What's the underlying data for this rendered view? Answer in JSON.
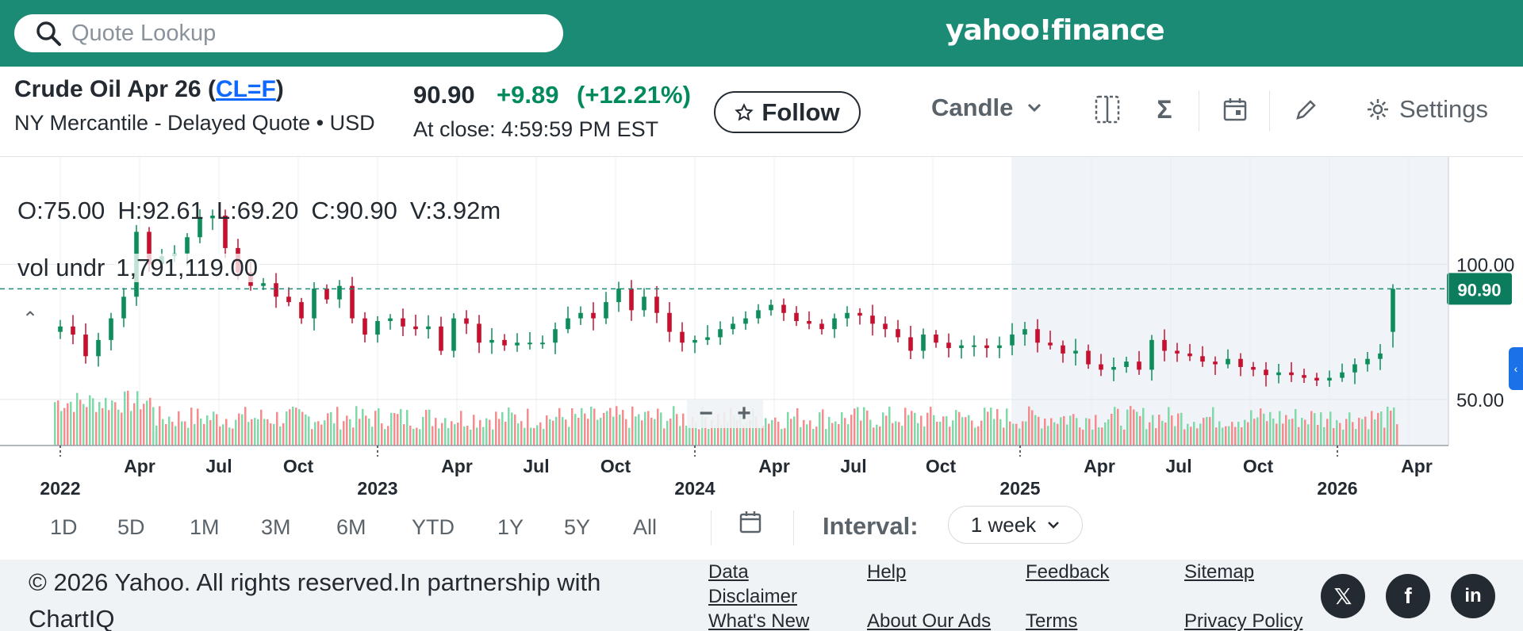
{
  "search": {
    "placeholder": "Quote Lookup"
  },
  "brand": {
    "logo_text": "yahoo!finance"
  },
  "quote": {
    "title_prefix": "Crude Oil Apr 26 (",
    "symbol": "CL=F",
    "title_suffix": ")",
    "exchange_line": "NY Mercantile - Delayed Quote • USD",
    "price": "90.90",
    "change": "+9.89",
    "change_pct": "(+12.21%)",
    "close_time": "At close: 4:59:59 PM EST",
    "follow_label": "Follow"
  },
  "toolbar": {
    "chart_type": "Candle",
    "settings_label": "Settings",
    "icons": [
      "compare-icon",
      "indicators-sigma-icon",
      "events-calendar-icon",
      "draw-pencil-icon",
      "gear-icon"
    ]
  },
  "chart_overlay": {
    "open": "O:75.00",
    "high": "H:92.61",
    "low": "L:69.20",
    "close": "C:90.90",
    "volume": "V:3.92m",
    "vol_label": "vol undr",
    "vol_value": "1,791,119.00",
    "price_tag": "90.90",
    "zoom_minus": "−",
    "zoom_plus": "+"
  },
  "chart_data": {
    "type": "candlestick",
    "interval": "weekly",
    "last_price": 90.9,
    "last_candle": {
      "open": 75.0,
      "high": 92.61,
      "low": 69.2,
      "close": 90.9
    },
    "y_tick_labels": [
      "100.00",
      "50.00"
    ],
    "x_month_labels": [
      "Apr",
      "Jul",
      "Oct",
      "Apr",
      "Jul",
      "Oct",
      "Apr",
      "Jul",
      "Oct",
      "Apr",
      "Jul",
      "Oct",
      "Apr"
    ],
    "x_year_labels": [
      "2022",
      "2023",
      "2024",
      "2025",
      "2026"
    ],
    "ylim": [
      40,
      135
    ],
    "closes": [
      [
        2022.0,
        77
      ],
      [
        2022.04,
        74
      ],
      [
        2022.08,
        66
      ],
      [
        2022.12,
        72
      ],
      [
        2022.16,
        80
      ],
      [
        2022.2,
        88
      ],
      [
        2022.24,
        112
      ],
      [
        2022.28,
        100
      ],
      [
        2022.32,
        103
      ],
      [
        2022.36,
        104
      ],
      [
        2022.4,
        110
      ],
      [
        2022.44,
        117
      ],
      [
        2022.48,
        118
      ],
      [
        2022.52,
        106
      ],
      [
        2022.56,
        97
      ],
      [
        2022.6,
        92
      ],
      [
        2022.64,
        93
      ],
      [
        2022.68,
        88
      ],
      [
        2022.72,
        86
      ],
      [
        2022.76,
        80
      ],
      [
        2022.8,
        91
      ],
      [
        2022.84,
        87
      ],
      [
        2022.88,
        92
      ],
      [
        2022.92,
        80
      ],
      [
        2022.96,
        74
      ],
      [
        2023.0,
        79
      ],
      [
        2023.04,
        80
      ],
      [
        2023.08,
        77
      ],
      [
        2023.12,
        76
      ],
      [
        2023.16,
        77
      ],
      [
        2023.2,
        68
      ],
      [
        2023.24,
        80
      ],
      [
        2023.28,
        78
      ],
      [
        2023.32,
        71
      ],
      [
        2023.36,
        72
      ],
      [
        2023.4,
        70
      ],
      [
        2023.44,
        71
      ],
      [
        2023.48,
        71
      ],
      [
        2023.52,
        71
      ],
      [
        2023.56,
        76
      ],
      [
        2023.6,
        80
      ],
      [
        2023.64,
        82
      ],
      [
        2023.68,
        80
      ],
      [
        2023.72,
        86
      ],
      [
        2023.76,
        91
      ],
      [
        2023.8,
        83
      ],
      [
        2023.84,
        88
      ],
      [
        2023.88,
        82
      ],
      [
        2023.92,
        75
      ],
      [
        2023.96,
        71
      ],
      [
        2024.0,
        72
      ],
      [
        2024.04,
        73
      ],
      [
        2024.08,
        76
      ],
      [
        2024.12,
        78
      ],
      [
        2024.16,
        80
      ],
      [
        2024.2,
        83
      ],
      [
        2024.24,
        85
      ],
      [
        2024.28,
        82
      ],
      [
        2024.32,
        79
      ],
      [
        2024.36,
        78
      ],
      [
        2024.4,
        76
      ],
      [
        2024.44,
        80
      ],
      [
        2024.48,
        82
      ],
      [
        2024.52,
        81
      ],
      [
        2024.56,
        78
      ],
      [
        2024.6,
        76
      ],
      [
        2024.64,
        73
      ],
      [
        2024.68,
        68
      ],
      [
        2024.72,
        74
      ],
      [
        2024.76,
        71
      ],
      [
        2024.8,
        69
      ],
      [
        2024.84,
        70
      ],
      [
        2024.88,
        70
      ],
      [
        2024.92,
        69
      ],
      [
        2024.96,
        70
      ],
      [
        2025.0,
        74
      ],
      [
        2025.04,
        76
      ],
      [
        2025.08,
        71
      ],
      [
        2025.12,
        70
      ],
      [
        2025.16,
        67
      ],
      [
        2025.2,
        68
      ],
      [
        2025.24,
        63
      ],
      [
        2025.28,
        61
      ],
      [
        2025.32,
        62
      ],
      [
        2025.36,
        64
      ],
      [
        2025.4,
        61
      ],
      [
        2025.44,
        72
      ],
      [
        2025.48,
        68
      ],
      [
        2025.52,
        67
      ],
      [
        2025.56,
        66
      ],
      [
        2025.6,
        64
      ],
      [
        2025.64,
        63
      ],
      [
        2025.68,
        65
      ],
      [
        2025.72,
        62
      ],
      [
        2025.76,
        61
      ],
      [
        2025.8,
        59
      ],
      [
        2025.84,
        60
      ],
      [
        2025.88,
        59
      ],
      [
        2025.92,
        58
      ],
      [
        2025.96,
        57
      ],
      [
        2026.0,
        58
      ],
      [
        2026.04,
        60
      ],
      [
        2026.08,
        63
      ],
      [
        2026.12,
        65
      ],
      [
        2026.16,
        67
      ],
      [
        2026.2,
        90.9
      ]
    ]
  },
  "range_buttons": [
    "1D",
    "5D",
    "1M",
    "3M",
    "6M",
    "YTD",
    "1Y",
    "5Y",
    "All"
  ],
  "interval": {
    "label": "Interval:",
    "value": "1 week"
  },
  "footer": {
    "copyright": "© 2026 Yahoo. All rights reserved.In partnership with ChartIQ",
    "links": {
      "data_disclaimer": "Data Disclaimer",
      "whats_new": "What's New",
      "help": "Help",
      "about_ads": "About Our Ads",
      "feedback": "Feedback",
      "terms": "Terms",
      "sitemap": "Sitemap",
      "privacy": "Privacy Policy"
    },
    "social": [
      "x-icon",
      "facebook-icon",
      "linkedin-icon"
    ]
  },
  "colors": {
    "brand_green": "#1b8b75",
    "up_green": "#0b8f5a",
    "down_red": "#c8102e",
    "vol_up": "#7fd9a8",
    "vol_down": "#f38c8c",
    "price_tag": "#0b7d5e"
  }
}
